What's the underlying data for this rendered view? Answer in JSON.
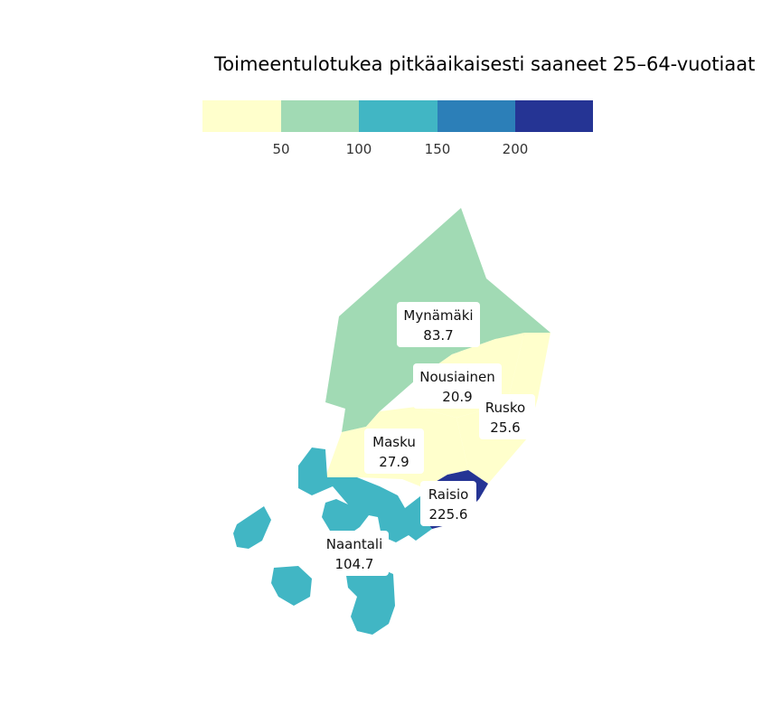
{
  "title": "Toimeentulotukea pitkäaikaisesti saaneet 25–64-vuotiaat",
  "legend": {
    "breaks": [
      50,
      100,
      150,
      200
    ],
    "colors": [
      "#ffffcc",
      "#a1dab4",
      "#41b6c4",
      "#2c7fb8",
      "#253494"
    ],
    "tick_labels": [
      "50",
      "100",
      "150",
      "200"
    ]
  },
  "chart_data": {
    "type": "choropleth",
    "title": "Toimeentulotukea pitkäaikaisesti saaneet 25–64-vuotiaat",
    "regions": [
      {
        "name": "Mynämäki",
        "value": "83.7",
        "color": "#a1dab4"
      },
      {
        "name": "Nousiainen",
        "value": "20.9",
        "color": "#ffffcc"
      },
      {
        "name": "Rusko",
        "value": "25.6",
        "color": "#ffffcc"
      },
      {
        "name": "Masku",
        "value": "27.9",
        "color": "#ffffcc"
      },
      {
        "name": "Raisio",
        "value": "225.6",
        "color": "#253494"
      },
      {
        "name": "Naantali",
        "value": "104.7",
        "color": "#41b6c4"
      }
    ]
  }
}
